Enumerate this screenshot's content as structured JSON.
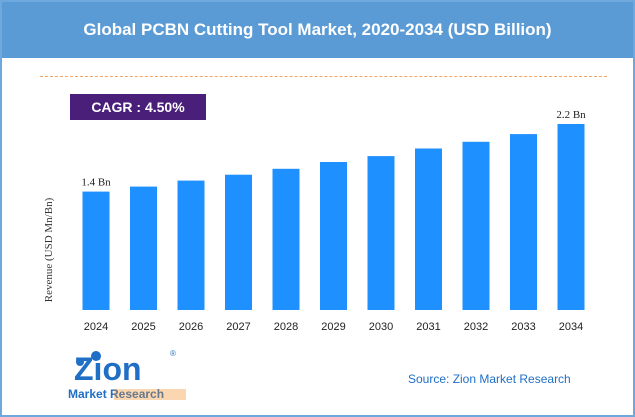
{
  "title": "Global PCBN Cutting Tool Market, 2020-2034 (USD Billion)",
  "cagr": "CAGR : 4.50%",
  "source": "Source: Zion Market Research",
  "logo": {
    "word": "Zion",
    "tagline": "Market Research",
    "registered": "®"
  },
  "colors": {
    "title_bg": "#5b9bd5",
    "bar": "#1e90ff",
    "cagr_bg": "#4a1f7a",
    "source_text": "#1f6fc6",
    "dash": "#f4a460"
  },
  "chart_data": {
    "type": "bar",
    "categories": [
      "2024",
      "2025",
      "2026",
      "2027",
      "2028",
      "2029",
      "2030",
      "2031",
      "2032",
      "2033",
      "2034"
    ],
    "values": [
      1.4,
      1.46,
      1.53,
      1.6,
      1.67,
      1.75,
      1.82,
      1.91,
      1.99,
      2.08,
      2.2
    ],
    "ylabel": "Revenue (USD Mn/Bn)",
    "xlabel": "",
    "ylim": [
      0,
      2.2
    ],
    "data_labels": [
      {
        "index": 0,
        "text": "1.4 Bn"
      },
      {
        "index": 10,
        "text": "2.2 Bn"
      }
    ],
    "grid": false,
    "legend": "none"
  }
}
